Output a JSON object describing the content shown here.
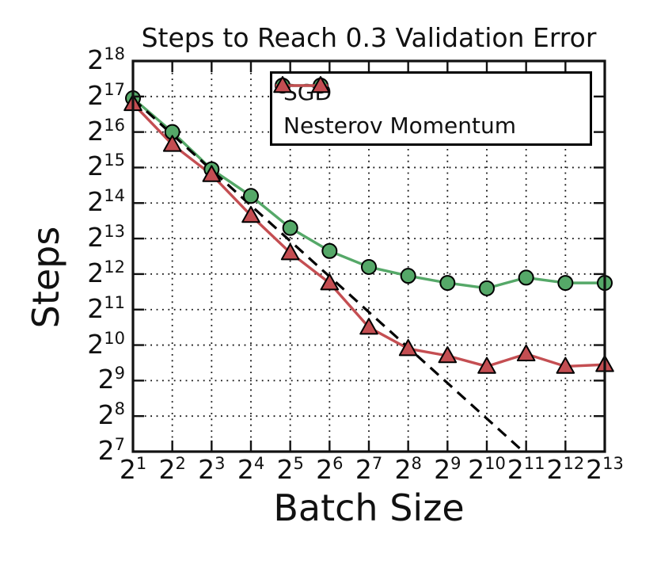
{
  "figure": {
    "background": "#ffffff",
    "text_color": "#111111"
  },
  "chart_data": {
    "type": "line",
    "title": "Steps to Reach 0.3 Validation Error",
    "xlabel": "Batch Size",
    "ylabel": "Steps",
    "grid": "dotted",
    "x_axis": {
      "scale": "log2",
      "tick_base": "2",
      "tick_exponents": [
        1,
        2,
        3,
        4,
        5,
        6,
        7,
        8,
        9,
        10,
        11,
        12,
        13
      ]
    },
    "y_axis": {
      "scale": "log2",
      "tick_base": "2",
      "tick_exponents": [
        7,
        8,
        9,
        10,
        11,
        12,
        13,
        14,
        15,
        16,
        17,
        18
      ]
    },
    "series": [
      {
        "name": "SGD",
        "marker": "circle",
        "color": "#55A868",
        "x_exponents": [
          1,
          2,
          3,
          4,
          5,
          6,
          7,
          8,
          9,
          10,
          11,
          12,
          13
        ],
        "y_log2_steps": [
          16.95,
          16.0,
          14.95,
          14.2,
          13.3,
          12.65,
          12.2,
          11.95,
          11.75,
          11.6,
          11.9,
          11.75,
          11.75
        ]
      },
      {
        "name": "Nesterov Momentum",
        "marker": "triangle-up",
        "color": "#C44E52",
        "x_exponents": [
          1,
          2,
          3,
          4,
          5,
          6,
          7,
          8,
          9,
          10,
          11,
          12,
          13
        ],
        "y_log2_steps": [
          16.8,
          15.65,
          14.8,
          13.65,
          12.6,
          11.75,
          10.5,
          9.9,
          9.7,
          9.4,
          9.75,
          9.4,
          9.45
        ]
      }
    ],
    "reference_line": {
      "style": "dashed",
      "color": "#000000",
      "start_x_exponent": 1,
      "start_y_log2": 16.93,
      "slope_log2": -1,
      "clip_at_y_log2": 7
    },
    "legend": {
      "entries": [
        "SGD",
        "Nesterov Momentum"
      ]
    }
  }
}
